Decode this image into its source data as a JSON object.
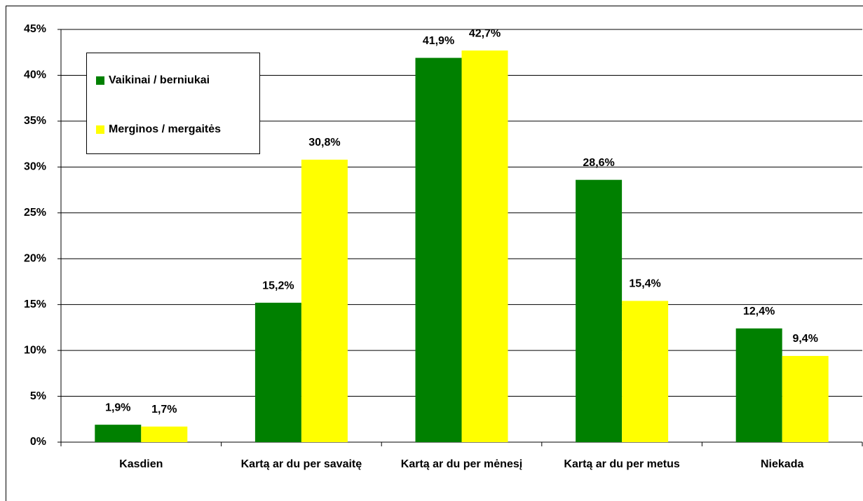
{
  "chart_data": {
    "type": "bar",
    "categories": [
      "Kasdien",
      "Kartą ar du per savaitę",
      "Kartą ar du per mėnesį",
      "Kartą ar du per metus",
      "Niekada"
    ],
    "series": [
      {
        "name": "Vaikinai / berniukai",
        "color": "#008000",
        "values": [
          1.9,
          15.2,
          41.9,
          28.6,
          12.4
        ],
        "value_labels": [
          "1,9%",
          "15,2%",
          "41,9%",
          "28,6%",
          "12,4%"
        ]
      },
      {
        "name": "Merginos / mergaitės",
        "color": "#ffff00",
        "values": [
          1.7,
          30.8,
          42.7,
          15.4,
          9.4
        ],
        "value_labels": [
          "1,7%",
          "30,8%",
          "42,7%",
          "15,4%",
          "9,4%"
        ]
      }
    ],
    "ylim": [
      0,
      45
    ],
    "yticks": [
      {
        "value": 0,
        "label": "0%"
      },
      {
        "value": 5,
        "label": "5%"
      },
      {
        "value": 10,
        "label": "10%"
      },
      {
        "value": 15,
        "label": "15%"
      },
      {
        "value": 20,
        "label": "20%"
      },
      {
        "value": 25,
        "label": "25%"
      },
      {
        "value": 30,
        "label": "30%"
      },
      {
        "value": 35,
        "label": "35%"
      },
      {
        "value": 40,
        "label": "40%"
      },
      {
        "value": 45,
        "label": "45%"
      }
    ],
    "grid": true,
    "legend": "upper left"
  }
}
